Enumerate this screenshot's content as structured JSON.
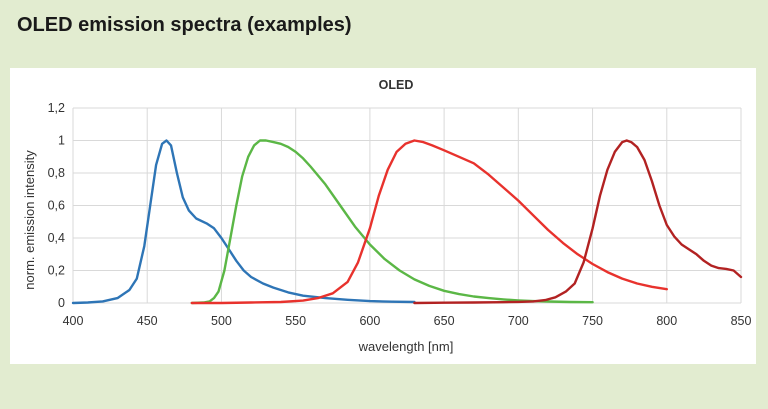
{
  "heading": "OLED emission spectra (examples)",
  "chart_data": {
    "type": "line",
    "title": "OLED",
    "xlabel": "wavelength [nm]",
    "ylabel": "norm. emission intensity",
    "xlim": [
      400,
      850
    ],
    "ylim": [
      0,
      1.2
    ],
    "x_ticks": [
      400,
      450,
      500,
      550,
      600,
      650,
      700,
      750,
      800,
      850
    ],
    "x_tick_labels": [
      "400",
      "450",
      "500",
      "550",
      "600",
      "650",
      "700",
      "750",
      "800",
      "850"
    ],
    "y_ticks": [
      0,
      0.2,
      0.4,
      0.6,
      0.8,
      1.0,
      1.2
    ],
    "y_tick_labels": [
      "0",
      "0,2",
      "0,4",
      "0,6",
      "0,8",
      "1",
      "1,2"
    ],
    "grid": true,
    "series": [
      {
        "name": "blue",
        "color": "#2e75b6",
        "points": [
          [
            400,
            0.0
          ],
          [
            410,
            0.003
          ],
          [
            420,
            0.01
          ],
          [
            430,
            0.03
          ],
          [
            438,
            0.08
          ],
          [
            443,
            0.15
          ],
          [
            448,
            0.35
          ],
          [
            452,
            0.6
          ],
          [
            456,
            0.85
          ],
          [
            460,
            0.98
          ],
          [
            463,
            1.0
          ],
          [
            466,
            0.97
          ],
          [
            470,
            0.8
          ],
          [
            474,
            0.65
          ],
          [
            478,
            0.57
          ],
          [
            483,
            0.52
          ],
          [
            490,
            0.49
          ],
          [
            495,
            0.46
          ],
          [
            500,
            0.4
          ],
          [
            505,
            0.33
          ],
          [
            510,
            0.26
          ],
          [
            515,
            0.2
          ],
          [
            520,
            0.16
          ],
          [
            528,
            0.12
          ],
          [
            535,
            0.095
          ],
          [
            545,
            0.065
          ],
          [
            555,
            0.045
          ],
          [
            570,
            0.03
          ],
          [
            585,
            0.02
          ],
          [
            600,
            0.012
          ],
          [
            615,
            0.008
          ],
          [
            630,
            0.006
          ]
        ]
      },
      {
        "name": "green",
        "color": "#5bb746",
        "points": [
          [
            480,
            0.0
          ],
          [
            488,
            0.003
          ],
          [
            492,
            0.01
          ],
          [
            495,
            0.03
          ],
          [
            498,
            0.07
          ],
          [
            502,
            0.2
          ],
          [
            506,
            0.4
          ],
          [
            510,
            0.6
          ],
          [
            514,
            0.78
          ],
          [
            518,
            0.9
          ],
          [
            522,
            0.97
          ],
          [
            526,
            1.0
          ],
          [
            530,
            1.0
          ],
          [
            535,
            0.99
          ],
          [
            540,
            0.98
          ],
          [
            545,
            0.96
          ],
          [
            550,
            0.93
          ],
          [
            555,
            0.89
          ],
          [
            560,
            0.84
          ],
          [
            570,
            0.73
          ],
          [
            580,
            0.6
          ],
          [
            590,
            0.47
          ],
          [
            600,
            0.36
          ],
          [
            610,
            0.27
          ],
          [
            620,
            0.2
          ],
          [
            630,
            0.145
          ],
          [
            640,
            0.105
          ],
          [
            650,
            0.075
          ],
          [
            660,
            0.055
          ],
          [
            670,
            0.04
          ],
          [
            680,
            0.03
          ],
          [
            690,
            0.022
          ],
          [
            700,
            0.016
          ],
          [
            710,
            0.012
          ],
          [
            720,
            0.009
          ],
          [
            735,
            0.006
          ],
          [
            750,
            0.005
          ]
        ]
      },
      {
        "name": "red",
        "color": "#e8322d",
        "points": [
          [
            480,
            0.0
          ],
          [
            500,
            0.0
          ],
          [
            520,
            0.003
          ],
          [
            540,
            0.006
          ],
          [
            555,
            0.015
          ],
          [
            565,
            0.03
          ],
          [
            575,
            0.06
          ],
          [
            585,
            0.13
          ],
          [
            592,
            0.25
          ],
          [
            600,
            0.46
          ],
          [
            606,
            0.66
          ],
          [
            612,
            0.82
          ],
          [
            618,
            0.93
          ],
          [
            624,
            0.98
          ],
          [
            630,
            1.0
          ],
          [
            636,
            0.99
          ],
          [
            642,
            0.97
          ],
          [
            650,
            0.94
          ],
          [
            660,
            0.9
          ],
          [
            670,
            0.86
          ],
          [
            680,
            0.79
          ],
          [
            690,
            0.71
          ],
          [
            700,
            0.63
          ],
          [
            710,
            0.54
          ],
          [
            720,
            0.45
          ],
          [
            730,
            0.37
          ],
          [
            740,
            0.3
          ],
          [
            750,
            0.24
          ],
          [
            760,
            0.19
          ],
          [
            770,
            0.15
          ],
          [
            780,
            0.12
          ],
          [
            790,
            0.1
          ],
          [
            800,
            0.085
          ]
        ]
      },
      {
        "name": "dark red",
        "color": "#b22222",
        "points": [
          [
            630,
            0.0
          ],
          [
            650,
            0.002
          ],
          [
            670,
            0.003
          ],
          [
            690,
            0.005
          ],
          [
            700,
            0.007
          ],
          [
            710,
            0.01
          ],
          [
            718,
            0.018
          ],
          [
            725,
            0.035
          ],
          [
            732,
            0.07
          ],
          [
            738,
            0.12
          ],
          [
            744,
            0.25
          ],
          [
            750,
            0.46
          ],
          [
            755,
            0.66
          ],
          [
            760,
            0.82
          ],
          [
            765,
            0.93
          ],
          [
            770,
            0.99
          ],
          [
            773,
            1.0
          ],
          [
            776,
            0.99
          ],
          [
            780,
            0.96
          ],
          [
            785,
            0.88
          ],
          [
            790,
            0.75
          ],
          [
            795,
            0.6
          ],
          [
            800,
            0.48
          ],
          [
            805,
            0.41
          ],
          [
            810,
            0.36
          ],
          [
            815,
            0.33
          ],
          [
            820,
            0.3
          ],
          [
            825,
            0.26
          ],
          [
            830,
            0.23
          ],
          [
            835,
            0.215
          ],
          [
            840,
            0.21
          ],
          [
            845,
            0.2
          ],
          [
            850,
            0.16
          ]
        ]
      }
    ]
  }
}
